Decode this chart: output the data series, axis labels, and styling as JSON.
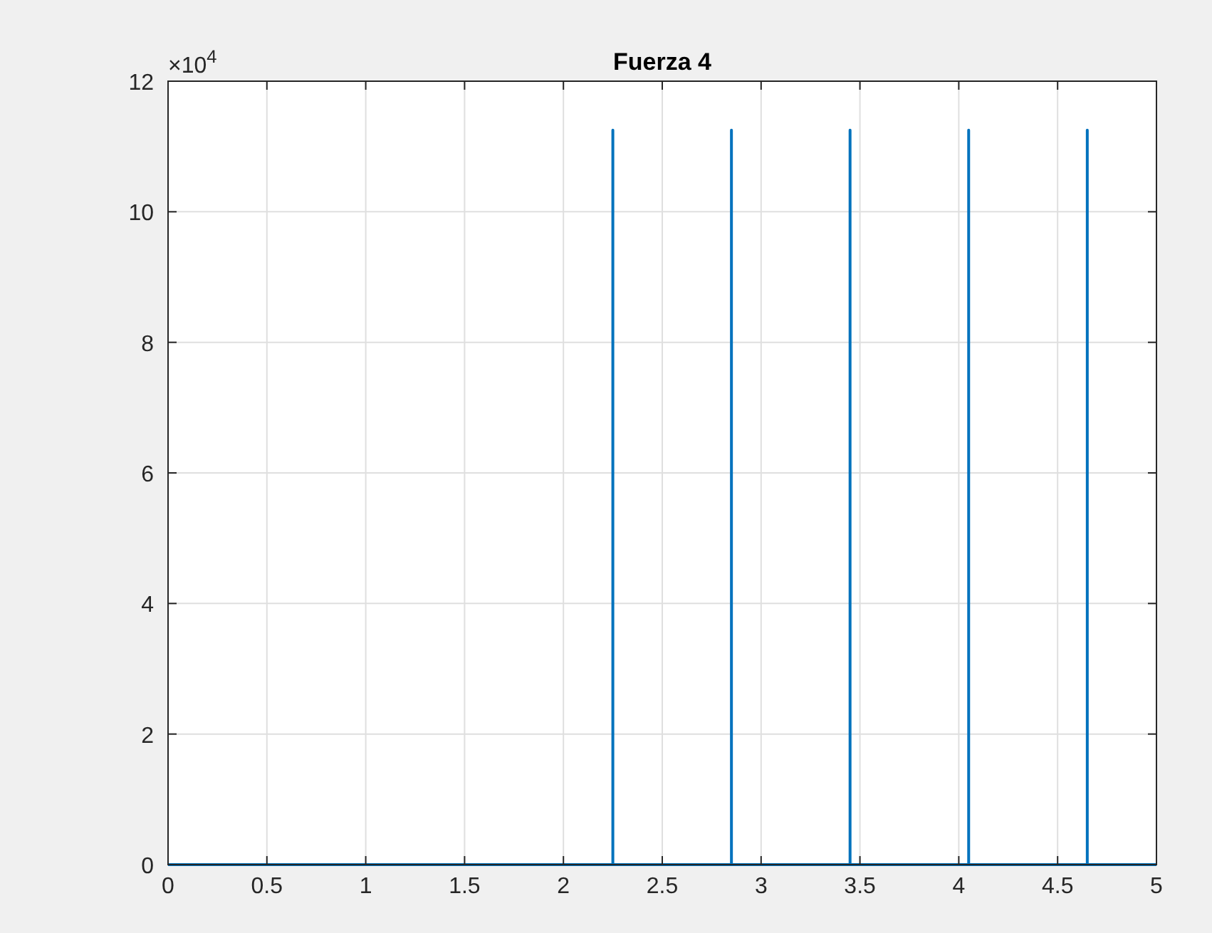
{
  "chart_data": {
    "type": "line",
    "title": "Fuerza 4",
    "x": [
      0,
      2.25,
      2.25,
      2.25,
      2.85,
      2.85,
      2.85,
      3.45,
      3.45,
      3.45,
      4.05,
      4.05,
      4.05,
      4.65,
      4.65,
      4.65,
      5
    ],
    "series": [
      {
        "color": "#0072bd",
        "values": [
          0,
          0,
          11.25,
          0,
          0,
          11.25,
          0,
          0,
          11.25,
          0,
          0,
          11.25,
          0,
          0,
          11.25,
          0,
          0
        ]
      }
    ],
    "xlim": [
      0,
      5
    ],
    "xticks": [
      0,
      0.5,
      1,
      1.5,
      2,
      2.5,
      3,
      3.5,
      4,
      4.5,
      5
    ],
    "ylim": [
      0,
      12
    ],
    "yticks": [
      0,
      2,
      4,
      6,
      8,
      10,
      12
    ],
    "annotations": [
      "×10$^{4}$"
    ],
    "grid": true,
    "marker": "none",
    "line_style": "solid"
  }
}
